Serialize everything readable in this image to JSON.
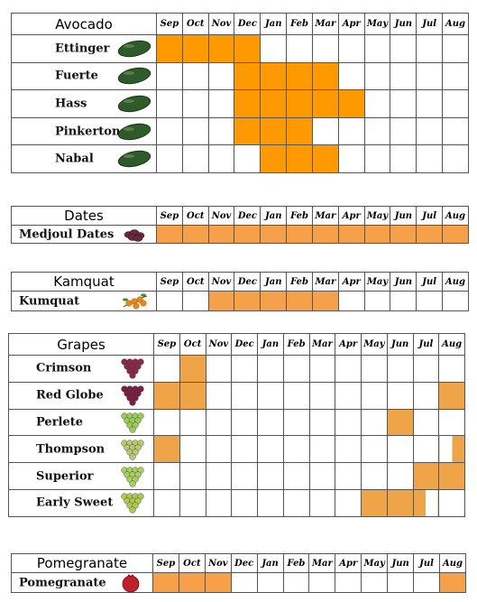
{
  "chart_data": {
    "type": "table",
    "months": [
      "Sep",
      "Oct",
      "Nov",
      "Dec",
      "Jan",
      "Feb",
      "Mar",
      "Apr",
      "May",
      "Jun",
      "Jul",
      "Aug"
    ],
    "groups": [
      {
        "key": "avocado",
        "title": "Avocado",
        "fruit_color": "#2f5a2a",
        "available_color": "#ff9900",
        "items": [
          {
            "name": "Ettinger",
            "icon": "avocado-icon",
            "available": [
              1,
              1,
              1,
              1,
              0,
              0,
              0,
              0,
              0,
              0,
              0,
              0
            ]
          },
          {
            "name": "Fuerte",
            "icon": "avocado-icon",
            "available": [
              0,
              0,
              0,
              1,
              1,
              1,
              1,
              0,
              0,
              0,
              0,
              0
            ]
          },
          {
            "name": "Hass",
            "icon": "avocado-icon",
            "available": [
              0,
              0,
              0,
              1,
              1,
              1,
              1,
              1,
              0,
              0,
              0,
              0
            ]
          },
          {
            "name": "Pinkerton",
            "icon": "avocado-icon",
            "available": [
              0,
              0,
              0,
              1,
              1,
              1,
              0,
              0,
              0,
              0,
              0,
              0
            ]
          },
          {
            "name": "Nabal",
            "icon": "avocado-icon",
            "available": [
              0,
              0,
              0,
              0,
              1,
              1,
              1,
              0,
              0,
              0,
              0,
              0
            ]
          }
        ]
      },
      {
        "key": "dates",
        "title": "Dates",
        "fruit_color": "#6a2a3a",
        "available_color": "#f6a04a",
        "items": [
          {
            "name": "Medjoul Dates",
            "icon": "dates-icon",
            "available": [
              1,
              1,
              1,
              1,
              1,
              1,
              1,
              1,
              1,
              1,
              1,
              1
            ]
          }
        ]
      },
      {
        "key": "kamquat",
        "title": "Kamquat",
        "fruit_color": "#e88a1a",
        "available_color": "#f6a04a",
        "items": [
          {
            "name": "Kumquat",
            "icon": "kumquat-icon",
            "available": [
              0,
              0,
              1,
              1,
              1,
              1,
              1,
              0,
              0,
              0,
              0,
              0
            ]
          }
        ]
      },
      {
        "key": "grapes",
        "title": "Grapes",
        "available_color": "#f0a448",
        "items": [
          {
            "name": "Crimson",
            "icon": "grapes-icon",
            "grape_color": "#8a2a4a",
            "available": [
              0,
              1,
              0,
              0,
              0,
              0,
              0,
              0,
              0,
              0,
              0,
              0
            ]
          },
          {
            "name": "Red Globe",
            "icon": "grapes-icon",
            "grape_color": "#7a2040",
            "available": [
              1,
              1,
              0,
              0,
              0,
              0,
              0,
              0,
              0,
              0,
              0,
              1
            ]
          },
          {
            "name": "Perlete",
            "icon": "grapes-icon",
            "grape_color": "#9acc5a",
            "available": [
              0,
              0,
              0,
              0,
              0,
              0,
              0,
              0,
              0,
              1,
              0,
              0
            ]
          },
          {
            "name": "Thompson",
            "icon": "grapes-icon",
            "grape_color": "#b8c870",
            "available": [
              1,
              0,
              0,
              0,
              0,
              0,
              0,
              0,
              0,
              0,
              0,
              0.5
            ]
          },
          {
            "name": "Superior",
            "icon": "grapes-icon",
            "grape_color": "#a8d060",
            "available": [
              0,
              0,
              0,
              0,
              0,
              0,
              0,
              0,
              0,
              0,
              1,
              1
            ]
          },
          {
            "name": "Early Sweet",
            "icon": "grapes-icon",
            "grape_color": "#b0c850",
            "available": [
              0,
              0,
              0,
              0,
              0,
              0,
              0,
              0,
              1,
              1,
              0.5,
              0
            ]
          }
        ]
      },
      {
        "key": "pomegranate",
        "title": "Pomegranate",
        "fruit_color": "#c0202a",
        "available_color": "#f6a04a",
        "items": [
          {
            "name": "Pomegranate",
            "icon": "pomegranate-icon",
            "available": [
              1,
              1,
              1,
              0,
              0,
              0,
              0,
              0,
              0,
              0,
              0,
              1
            ]
          }
        ]
      }
    ]
  }
}
